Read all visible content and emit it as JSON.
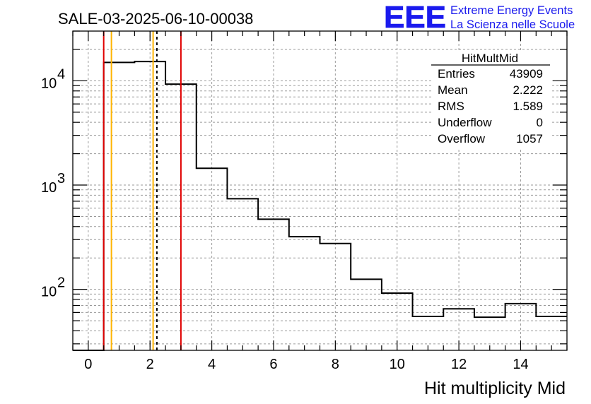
{
  "title": "SALE-03-2025-06-10-00038",
  "logo": {
    "mark": "EEE",
    "line1": "Extreme Energy Events",
    "line2": "La Scienza nelle Scuole",
    "color": "#1a1aee"
  },
  "stats": {
    "name": "HitMultMid",
    "rows": [
      {
        "label": "Entries",
        "value": "43909"
      },
      {
        "label": "Mean",
        "value": "2.222"
      },
      {
        "label": "RMS",
        "value": "1.589"
      },
      {
        "label": "Underflow",
        "value": "0"
      },
      {
        "label": "Overflow",
        "value": "1057"
      }
    ]
  },
  "chart_data": {
    "type": "histogram",
    "title": "SALE-03-2025-06-10-00038",
    "xlabel": "Hit multiplicity Mid",
    "ylabel": "",
    "xlim": [
      -0.5,
      15.5
    ],
    "ylim": [
      26,
      30000
    ],
    "yscale": "log",
    "grid": true,
    "bins": [
      {
        "lo": -0.5,
        "hi": 0.5,
        "value": 0
      },
      {
        "lo": 0.5,
        "hi": 1.5,
        "value": 15000
      },
      {
        "lo": 1.5,
        "hi": 2.5,
        "value": 15300
      },
      {
        "lo": 2.5,
        "hi": 3.5,
        "value": 9300
      },
      {
        "lo": 3.5,
        "hi": 4.5,
        "value": 1450
      },
      {
        "lo": 4.5,
        "hi": 5.5,
        "value": 740
      },
      {
        "lo": 5.5,
        "hi": 6.5,
        "value": 470
      },
      {
        "lo": 6.5,
        "hi": 7.5,
        "value": 320
      },
      {
        "lo": 7.5,
        "hi": 8.5,
        "value": 275
      },
      {
        "lo": 8.5,
        "hi": 9.5,
        "value": 125
      },
      {
        "lo": 9.5,
        "hi": 10.5,
        "value": 92
      },
      {
        "lo": 10.5,
        "hi": 11.5,
        "value": 55
      },
      {
        "lo": 11.5,
        "hi": 12.5,
        "value": 65
      },
      {
        "lo": 12.5,
        "hi": 13.5,
        "value": 54
      },
      {
        "lo": 13.5,
        "hi": 14.5,
        "value": 73
      },
      {
        "lo": 14.5,
        "hi": 15.5,
        "value": 55
      }
    ],
    "x_ticks": [
      0,
      2,
      4,
      6,
      8,
      10,
      12,
      14
    ],
    "x_tick_labels": [
      "0",
      "2",
      "4",
      "6",
      "8",
      "10",
      "12",
      "14"
    ],
    "y_ticks": [
      100,
      1000,
      10000
    ],
    "y_tick_bases": [
      "10",
      "10",
      "10"
    ],
    "y_tick_exponents": [
      "2",
      "3",
      "4"
    ],
    "vlines": [
      {
        "x": 0.5,
        "color": "#e00000",
        "style": "solid"
      },
      {
        "x": 3.0,
        "color": "#e00000",
        "style": "solid"
      },
      {
        "x": 0.75,
        "color": "#ffb400",
        "style": "solid"
      },
      {
        "x": 2.1,
        "color": "#ffb400",
        "style": "solid"
      },
      {
        "x": 2.222,
        "color": "#000000",
        "style": "dashed"
      }
    ]
  }
}
